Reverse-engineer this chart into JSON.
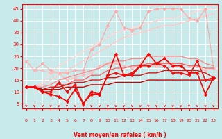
{
  "xlabel": "Vent moyen/en rafales ( km/h )",
  "bg_color": "#c8eaea",
  "grid_color": "#ffffff",
  "text_color": "#ff0000",
  "xlim": [
    -0.5,
    23.5
  ],
  "ylim": [
    3,
    47
  ],
  "xticks": [
    0,
    1,
    2,
    3,
    4,
    5,
    6,
    7,
    8,
    9,
    10,
    11,
    12,
    13,
    14,
    15,
    16,
    17,
    18,
    19,
    20,
    21,
    22,
    23
  ],
  "yticks": [
    5,
    10,
    15,
    20,
    25,
    30,
    35,
    40,
    45
  ],
  "series": [
    {
      "name": "line_dark1",
      "x": [
        0,
        1,
        2,
        3,
        4,
        5,
        6,
        7,
        8,
        9,
        10,
        11,
        12,
        13,
        14,
        15,
        16,
        17,
        18,
        19,
        20,
        21,
        22,
        23
      ],
      "y": [
        12,
        12,
        11,
        11,
        11,
        12,
        12,
        12,
        13,
        13,
        13,
        14,
        14,
        14,
        14,
        15,
        15,
        15,
        15,
        15,
        15,
        15,
        15,
        15
      ],
      "color": "#cc0000",
      "lw": 1.0,
      "marker": null
    },
    {
      "name": "line_dark2",
      "x": [
        0,
        1,
        2,
        3,
        4,
        5,
        6,
        7,
        8,
        9,
        10,
        11,
        12,
        13,
        14,
        15,
        16,
        17,
        18,
        19,
        20,
        21,
        22,
        23
      ],
      "y": [
        12,
        12,
        11,
        12,
        12,
        13,
        14,
        14,
        15,
        15,
        16,
        16,
        17,
        17,
        17,
        18,
        18,
        19,
        19,
        19,
        19,
        19,
        18,
        16
      ],
      "color": "#dd1111",
      "lw": 1.0,
      "marker": null
    },
    {
      "name": "line_mid1",
      "x": [
        0,
        1,
        2,
        3,
        4,
        5,
        6,
        7,
        8,
        9,
        10,
        11,
        12,
        13,
        14,
        15,
        16,
        17,
        18,
        19,
        20,
        21,
        22,
        23
      ],
      "y": [
        12,
        12,
        11,
        11,
        13,
        13,
        15,
        15,
        17,
        17,
        19,
        20,
        20,
        21,
        21,
        22,
        22,
        22,
        22,
        22,
        21,
        21,
        20,
        20
      ],
      "color": "#ff6666",
      "lw": 1.0,
      "marker": null
    },
    {
      "name": "line_mid2",
      "x": [
        0,
        1,
        2,
        3,
        4,
        5,
        6,
        7,
        8,
        9,
        10,
        11,
        12,
        13,
        14,
        15,
        16,
        17,
        18,
        19,
        20,
        21,
        22,
        23
      ],
      "y": [
        12,
        12,
        12,
        13,
        15,
        16,
        17,
        18,
        19,
        20,
        22,
        23,
        23,
        24,
        24,
        25,
        25,
        25,
        25,
        25,
        24,
        24,
        22,
        21
      ],
      "color": "#ff8888",
      "lw": 1.0,
      "marker": null
    },
    {
      "name": "dotted_pink_upper",
      "x": [
        0,
        1,
        2,
        3,
        4,
        5,
        6,
        7,
        8,
        9,
        10,
        11,
        12,
        13,
        14,
        15,
        16,
        17,
        18,
        19,
        20,
        21,
        22,
        23
      ],
      "y": [
        23,
        19,
        22,
        19,
        18,
        18,
        19,
        19,
        28,
        30,
        38,
        44,
        37,
        36,
        37,
        44,
        45,
        45,
        45,
        45,
        41,
        40,
        45,
        20
      ],
      "color": "#ffaaaa",
      "lw": 0.9,
      "marker": "D",
      "ms": 2.5
    },
    {
      "name": "dotted_pink_mid",
      "x": [
        0,
        1,
        2,
        3,
        4,
        5,
        6,
        7,
        8,
        9,
        10,
        11,
        12,
        13,
        14,
        15,
        16,
        17,
        18,
        19,
        20,
        21,
        22,
        23
      ],
      "y": [
        23,
        19,
        19,
        18,
        18,
        15,
        16,
        17,
        18,
        21,
        22,
        22,
        21,
        20,
        22,
        21,
        21,
        21,
        22,
        22,
        21,
        21,
        19,
        20
      ],
      "color": "#ffbbbb",
      "lw": 0.9,
      "marker": "D",
      "ms": 2.5
    },
    {
      "name": "straight_light1",
      "x": [
        0,
        1,
        2,
        3,
        4,
        5,
        6,
        7,
        8,
        9,
        10,
        11,
        12,
        13,
        14,
        15,
        16,
        17,
        18,
        19,
        20,
        21,
        22,
        23
      ],
      "y": [
        12,
        12,
        13,
        15,
        17,
        19,
        21,
        23,
        25,
        27,
        29,
        31,
        33,
        34,
        35,
        36,
        37,
        38,
        38,
        39,
        40,
        41,
        42,
        43
      ],
      "color": "#ffcccc",
      "lw": 1.2,
      "marker": null
    },
    {
      "name": "straight_light2",
      "x": [
        0,
        1,
        2,
        3,
        4,
        5,
        6,
        7,
        8,
        9,
        10,
        11,
        12,
        13,
        14,
        15,
        16,
        17,
        18,
        19,
        20,
        21,
        22,
        23
      ],
      "y": [
        12,
        12,
        14,
        18,
        21,
        23,
        25,
        27,
        29,
        31,
        33,
        35,
        36,
        37,
        38,
        39,
        40,
        41,
        41,
        42,
        43,
        44,
        45,
        45
      ],
      "color": "#ffd8d8",
      "lw": 1.2,
      "marker": null
    },
    {
      "name": "red_spiky",
      "x": [
        0,
        1,
        2,
        3,
        4,
        5,
        6,
        7,
        8,
        9,
        10,
        11,
        12,
        13,
        14,
        15,
        16,
        17,
        18,
        19,
        20,
        21,
        22,
        23
      ],
      "y": [
        12,
        12,
        10,
        9,
        8,
        6,
        11,
        5,
        9,
        9,
        17,
        26,
        17,
        17,
        21,
        26,
        22,
        24,
        21,
        21,
        18,
        18,
        9,
        16
      ],
      "color": "#ff0000",
      "lw": 1.2,
      "marker": "D",
      "ms": 2.5
    },
    {
      "name": "red_spiky2",
      "x": [
        0,
        1,
        2,
        3,
        4,
        5,
        6,
        7,
        8,
        9,
        10,
        11,
        12,
        13,
        14,
        15,
        16,
        17,
        18,
        19,
        20,
        21,
        22,
        23
      ],
      "y": [
        12,
        12,
        10,
        10,
        14,
        10,
        13,
        5,
        10,
        9,
        17,
        18,
        17,
        18,
        21,
        21,
        22,
        21,
        18,
        18,
        17,
        23,
        15,
        16
      ],
      "color": "#ee1111",
      "lw": 1.2,
      "marker": "D",
      "ms": 2.5
    }
  ]
}
